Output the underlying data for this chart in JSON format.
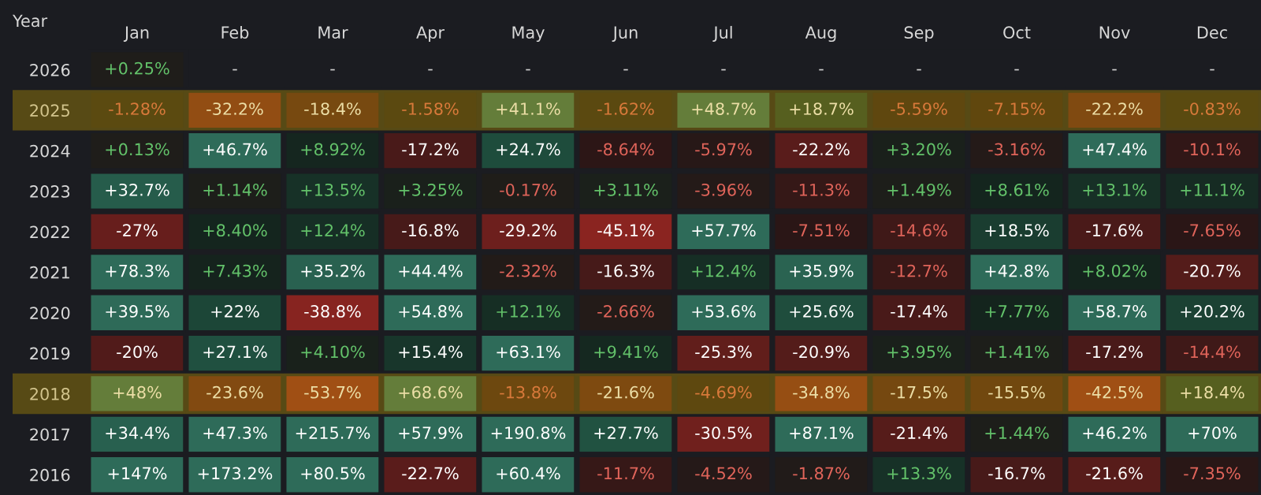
{
  "chart_data": {
    "type": "heatmap",
    "ylabel": "Year",
    "categories": [
      "Jan",
      "Feb",
      "Mar",
      "Apr",
      "May",
      "Jun",
      "Jul",
      "Aug",
      "Sep",
      "Oct",
      "Nov",
      "Dec"
    ],
    "y_categories": [
      "2026",
      "2025",
      "2024",
      "2023",
      "2022",
      "2021",
      "2020",
      "2019",
      "2018",
      "2017",
      "2016"
    ],
    "cells": [
      [
        0.25,
        null,
        null,
        null,
        null,
        null,
        null,
        null,
        null,
        null,
        null,
        null
      ],
      [
        -1.28,
        -32.2,
        -18.4,
        -1.58,
        41.1,
        -1.62,
        48.7,
        18.7,
        -5.59,
        -7.15,
        -22.2,
        -0.83
      ],
      [
        0.13,
        46.7,
        8.92,
        -17.2,
        24.7,
        -8.64,
        -5.97,
        -22.2,
        3.2,
        -3.16,
        47.4,
        -10.1
      ],
      [
        32.7,
        1.14,
        13.5,
        3.25,
        -0.17,
        3.11,
        -3.96,
        -11.3,
        1.49,
        8.61,
        13.1,
        11.1
      ],
      [
        -27,
        8.4,
        12.4,
        -16.8,
        -29.2,
        -45.1,
        57.7,
        -7.51,
        -14.6,
        18.5,
        -17.6,
        -7.65
      ],
      [
        78.3,
        7.43,
        35.2,
        44.4,
        -2.32,
        -16.3,
        12.4,
        35.9,
        -12.7,
        42.8,
        8.02,
        -20.7
      ],
      [
        39.5,
        22,
        -38.8,
        54.8,
        12.1,
        -2.66,
        53.6,
        25.6,
        -17.4,
        7.77,
        58.7,
        20.2
      ],
      [
        -20,
        27.1,
        4.1,
        15.4,
        63.1,
        9.41,
        -25.3,
        -20.9,
        3.95,
        1.41,
        -17.2,
        -14.4
      ],
      [
        48,
        -23.6,
        -53.7,
        68.6,
        -13.8,
        -21.6,
        -4.69,
        -34.8,
        -17.5,
        -15.5,
        -42.5,
        18.4
      ],
      [
        34.4,
        47.3,
        215.7,
        57.9,
        190.8,
        27.7,
        -30.5,
        87.1,
        -21.4,
        1.44,
        46.2,
        70
      ],
      [
        147,
        173.2,
        80.5,
        -22.7,
        60.4,
        -11.7,
        -4.52,
        -1.87,
        13.3,
        -16.7,
        -21.6,
        -7.35
      ]
    ],
    "cell_labels": [
      [
        "+0.25%",
        "-",
        "-",
        "-",
        "-",
        "-",
        "-",
        "-",
        "-",
        "-",
        "-",
        "-"
      ],
      [
        "-1.28%",
        "-32.2%",
        "-18.4%",
        "-1.58%",
        "+41.1%",
        "-1.62%",
        "+48.7%",
        "+18.7%",
        "-5.59%",
        "-7.15%",
        "-22.2%",
        "-0.83%"
      ],
      [
        "+0.13%",
        "+46.7%",
        "+8.92%",
        "-17.2%",
        "+24.7%",
        "-8.64%",
        "-5.97%",
        "-22.2%",
        "+3.20%",
        "-3.16%",
        "+47.4%",
        "-10.1%"
      ],
      [
        "+32.7%",
        "+1.14%",
        "+13.5%",
        "+3.25%",
        "-0.17%",
        "+3.11%",
        "-3.96%",
        "-11.3%",
        "+1.49%",
        "+8.61%",
        "+13.1%",
        "+11.1%"
      ],
      [
        "-27%",
        "+8.40%",
        "+12.4%",
        "-16.8%",
        "-29.2%",
        "-45.1%",
        "+57.7%",
        "-7.51%",
        "-14.6%",
        "+18.5%",
        "-17.6%",
        "-7.65%"
      ],
      [
        "+78.3%",
        "+7.43%",
        "+35.2%",
        "+44.4%",
        "-2.32%",
        "-16.3%",
        "+12.4%",
        "+35.9%",
        "-12.7%",
        "+42.8%",
        "+8.02%",
        "-20.7%"
      ],
      [
        "+39.5%",
        "+22%",
        "-38.8%",
        "+54.8%",
        "+12.1%",
        "-2.66%",
        "+53.6%",
        "+25.6%",
        "-17.4%",
        "+7.77%",
        "+58.7%",
        "+20.2%"
      ],
      [
        "-20%",
        "+27.1%",
        "+4.10%",
        "+15.4%",
        "+63.1%",
        "+9.41%",
        "-25.3%",
        "-20.9%",
        "+3.95%",
        "+1.41%",
        "-17.2%",
        "-14.4%"
      ],
      [
        "+48%",
        "-23.6%",
        "-53.7%",
        "+68.6%",
        "-13.8%",
        "-21.6%",
        "-4.69%",
        "-34.8%",
        "-17.5%",
        "-15.5%",
        "-42.5%",
        "+18.4%"
      ],
      [
        "+34.4%",
        "+47.3%",
        "+215.7%",
        "+57.9%",
        "+190.8%",
        "+27.7%",
        "-30.5%",
        "+87.1%",
        "-21.4%",
        "+1.44%",
        "+46.2%",
        "+70%"
      ],
      [
        "+147%",
        "+173.2%",
        "+80.5%",
        "-22.7%",
        "+60.4%",
        "-11.7%",
        "-4.52%",
        "-1.87%",
        "+13.3%",
        "-16.7%",
        "-21.6%",
        "-7.35%"
      ]
    ],
    "bands": [
      {
        "axis": "y",
        "from": "2025",
        "to": "2025",
        "color": "#c8a000"
      },
      {
        "axis": "y",
        "from": "2018",
        "to": "2018",
        "color": "#c8a000"
      }
    ]
  }
}
